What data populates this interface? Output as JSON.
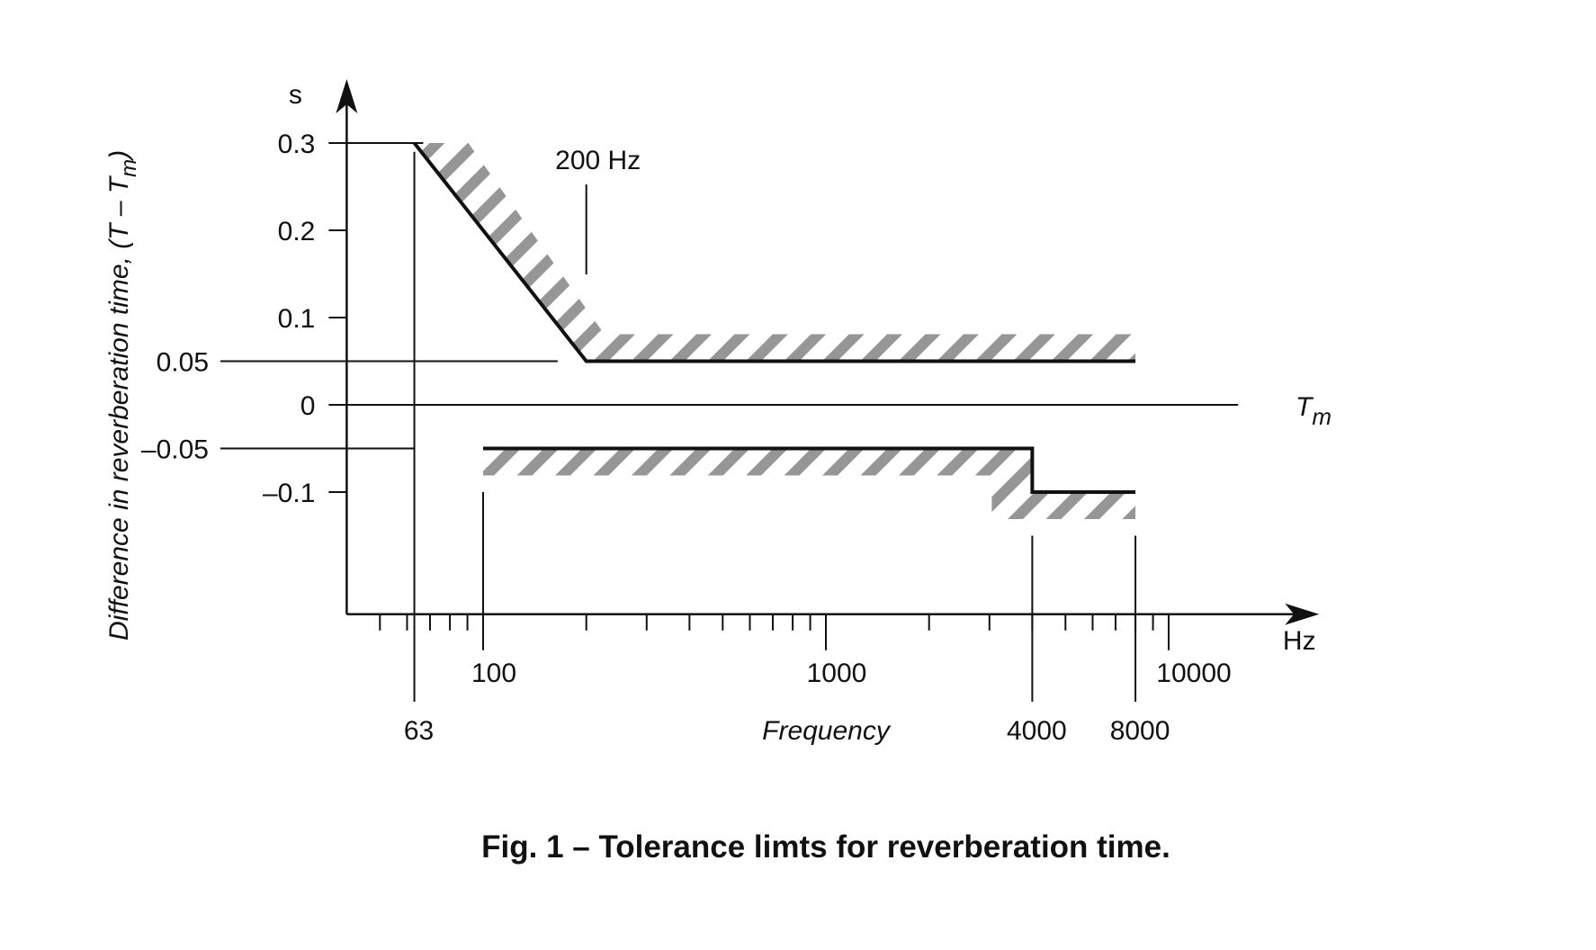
{
  "chart_data": {
    "type": "line",
    "title": "Fig. 1 – Tolerance limts for reverberation time.",
    "xlabel": "Frequency",
    "x_unit": "Hz",
    "ylabel": "Difference in reverberation time, (T – T",
    "ylabel_subscript": "m",
    "y_unit": "s",
    "x_scale": "log",
    "xlim": [
      40,
      18000
    ],
    "ylim": [
      -0.24,
      0.38
    ],
    "x_axis_labels": [
      "100",
      "1000",
      "10000"
    ],
    "x_marker_labels": [
      "63",
      "4000",
      "8000"
    ],
    "y_tick_labels": [
      "0.3",
      "0.2",
      "0.1",
      "0.05",
      "0",
      "–0.05",
      "–0.1"
    ],
    "y_ticks": [
      0.3,
      0.2,
      0.1,
      0.05,
      0,
      -0.05,
      -0.1
    ],
    "reference_label_main": "T",
    "reference_label_sub": "m",
    "annotation": {
      "text": "200 Hz",
      "x": 200,
      "y": 0.15
    },
    "series": [
      {
        "x": [
          63,
          200,
          8000
        ],
        "y": [
          0.3,
          0.05,
          0.05
        ]
      },
      {
        "x": [
          100,
          4000,
          4000,
          8000
        ],
        "y": [
          -0.05,
          -0.05,
          -0.1,
          -0.1
        ]
      },
      {
        "x": [
          40,
          18000
        ],
        "y": [
          0,
          0
        ]
      }
    ],
    "grid": false,
    "legend": "none"
  }
}
